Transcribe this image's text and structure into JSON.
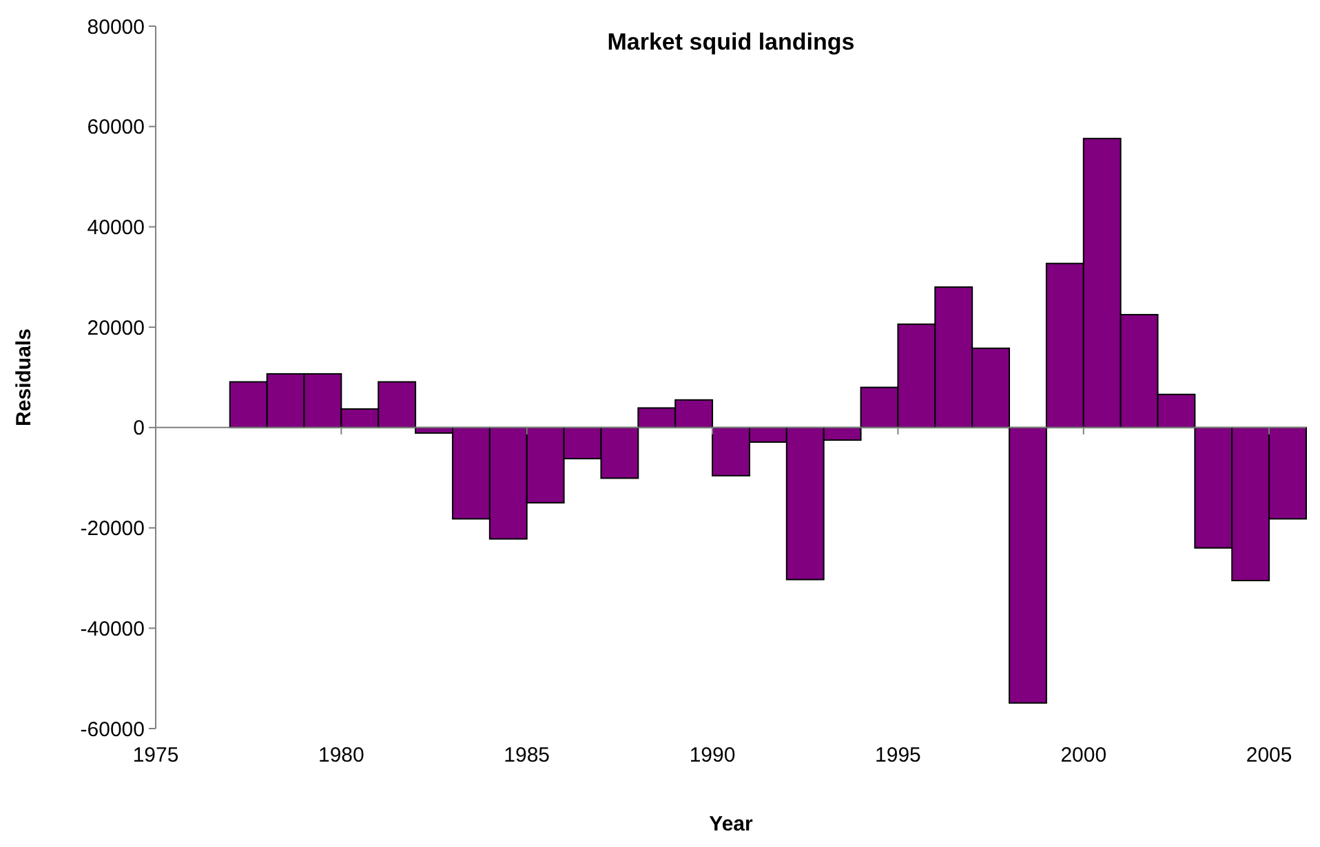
{
  "chart_data": {
    "type": "histogram",
    "title": "Market squid landings",
    "xlabel": "Year",
    "ylabel": "Residuals",
    "bins": [
      1977,
      1978,
      1979,
      1980,
      1981,
      1982,
      1983,
      1984,
      1985,
      1986,
      1987,
      1988,
      1989,
      1990,
      1991,
      1992,
      1993,
      1994,
      1995,
      1996,
      1997,
      1998,
      1999,
      2000,
      2001,
      2002,
      2003,
      2004,
      2005,
      2006
    ],
    "values": [
      9100,
      10700,
      10700,
      3700,
      9100,
      -1100,
      -18200,
      -22200,
      -15000,
      -6200,
      -10100,
      3900,
      5500,
      -9600,
      -2900,
      -30300,
      -2500,
      8000,
      20600,
      28000,
      15800,
      -54900,
      32700,
      57600,
      22500,
      6600,
      -24000,
      -30500,
      -18200
    ],
    "color": "#800080",
    "xlim": [
      1975,
      2006
    ],
    "xticks": [
      1975,
      1980,
      1985,
      1990,
      1995,
      2000,
      2005
    ],
    "ylim": [
      -60000,
      80000
    ],
    "yticks": [
      -60000,
      -40000,
      -20000,
      0,
      20000,
      40000,
      60000,
      80000
    ]
  }
}
